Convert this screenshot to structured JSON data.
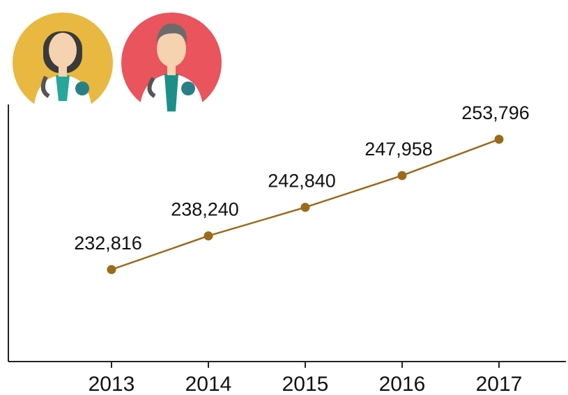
{
  "chart_data": {
    "type": "line",
    "categories": [
      "2013",
      "2014",
      "2015",
      "2016",
      "2017"
    ],
    "values": [
      232816,
      238240,
      242840,
      247958,
      253796
    ],
    "value_labels": [
      "232,816",
      "238,240",
      "242,840",
      "247,958",
      "253,796"
    ],
    "color": "#9b6a1b",
    "ylim": [
      218000,
      259400
    ]
  }
}
